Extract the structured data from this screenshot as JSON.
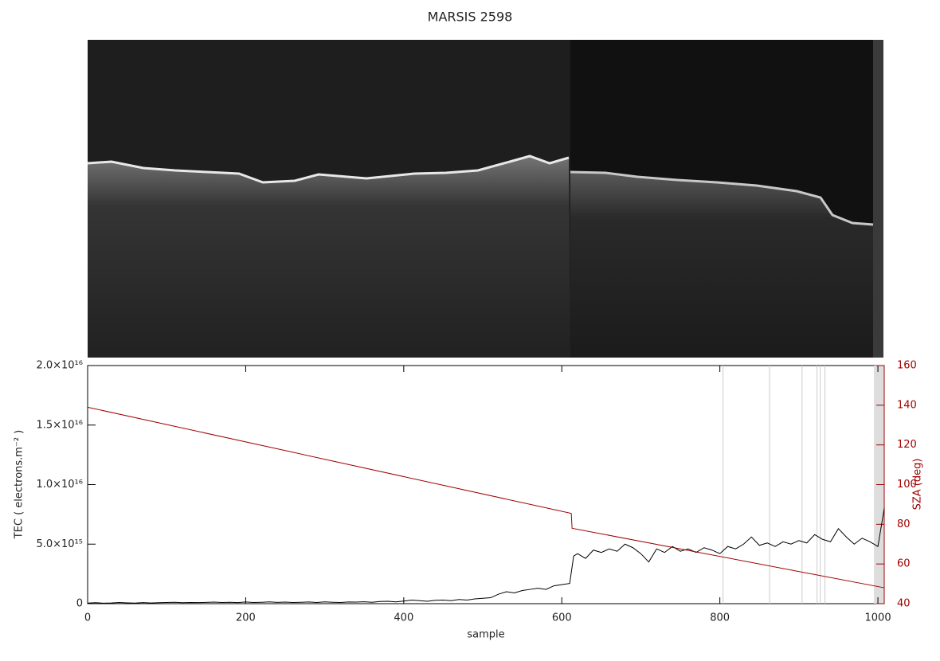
{
  "chart_data": {
    "type": "line",
    "title": "MARSIS 2598",
    "xlabel": "sample",
    "ylabel": "TEC ( electrons.m⁻² )",
    "y2label": "SZA (deg)",
    "xlim": [
      0,
      1008
    ],
    "xticks": [
      0,
      200,
      400,
      600,
      800,
      1000
    ],
    "ylim": [
      0,
      2e+16
    ],
    "yticks": [
      0,
      {
        "value": 5000000000000000.0,
        "label": "5.0×10¹⁵"
      },
      {
        "value": 1e+16,
        "label": "1.0×10¹⁶"
      },
      {
        "value": 1.5e+16,
        "label": "1.5×10¹⁶"
      },
      {
        "value": 2e+16,
        "label": "2.0×10¹⁶"
      }
    ],
    "y2lim": [
      40,
      160
    ],
    "y2ticks": [
      40,
      60,
      80,
      100,
      120,
      140,
      160
    ],
    "vlines": [
      804,
      863,
      904,
      923,
      927,
      933
    ],
    "vline_color": "#cccccc",
    "shaded": [
      995,
      1008
    ],
    "shade_color": "#dddddd",
    "series": [
      {
        "name": "TEC",
        "color": "#000000",
        "x": [
          0,
          10,
          20,
          30,
          40,
          50,
          60,
          70,
          80,
          90,
          100,
          110,
          120,
          130,
          140,
          150,
          160,
          170,
          180,
          190,
          200,
          210,
          220,
          230,
          240,
          250,
          260,
          270,
          280,
          290,
          300,
          310,
          320,
          330,
          340,
          350,
          360,
          370,
          380,
          390,
          400,
          410,
          420,
          430,
          440,
          450,
          460,
          470,
          480,
          490,
          500,
          510,
          520,
          530,
          540,
          550,
          560,
          570,
          580,
          590,
          600,
          610,
          615,
          620,
          630,
          640,
          650,
          660,
          670,
          680,
          690,
          700,
          710,
          720,
          730,
          740,
          750,
          760,
          770,
          780,
          790,
          800,
          810,
          820,
          830,
          840,
          850,
          860,
          870,
          880,
          890,
          900,
          910,
          920,
          930,
          940,
          950,
          960,
          970,
          980,
          990,
          1000,
          1008
        ],
        "values": [
          50000000000000.0,
          80000000000000.0,
          40000000000000.0,
          60000000000000.0,
          100000000000000.0,
          70000000000000.0,
          50000000000000.0,
          90000000000000.0,
          60000000000000.0,
          80000000000000.0,
          100000000000000.0,
          120000000000000.0,
          80000000000000.0,
          100000000000000.0,
          90000000000000.0,
          110000000000000.0,
          130000000000000.0,
          100000000000000.0,
          120000000000000.0,
          90000000000000.0,
          140000000000000.0,
          100000000000000.0,
          120000000000000.0,
          150000000000000.0,
          110000000000000.0,
          130000000000000.0,
          100000000000000.0,
          120000000000000.0,
          140000000000000.0,
          100000000000000.0,
          150000000000000.0,
          120000000000000.0,
          100000000000000.0,
          140000000000000.0,
          130000000000000.0,
          160000000000000.0,
          120000000000000.0,
          180000000000000.0,
          200000000000000.0,
          150000000000000.0,
          220000000000000.0,
          300000000000000.0,
          250000000000000.0,
          200000000000000.0,
          280000000000000.0,
          300000000000000.0,
          250000000000000.0,
          350000000000000.0,
          300000000000000.0,
          400000000000000.0,
          450000000000000.0,
          500000000000000.0,
          800000000000000.0,
          1000000000000000.0,
          900000000000000.0,
          1100000000000000.0,
          1200000000000000.0,
          1300000000000000.0,
          1200000000000000.0,
          1500000000000000.0,
          1600000000000000.0,
          1700000000000000.0,
          4000000000000000.0,
          4200000000000000.0,
          3800000000000000.0,
          4500000000000000.0,
          4300000000000000.0,
          4600000000000000.0,
          4400000000000000.0,
          5000000000000000.0,
          4700000000000000.0,
          4200000000000000.0,
          3500000000000000.0,
          4600000000000000.0,
          4300000000000000.0,
          4800000000000000.0,
          4400000000000000.0,
          4600000000000000.0,
          4300000000000000.0,
          4700000000000000.0,
          4500000000000000.0,
          4200000000000000.0,
          4800000000000000.0,
          4600000000000000.0,
          5000000000000000.0,
          5600000000000000.0,
          4900000000000000.0,
          5100000000000000.0,
          4800000000000000.0,
          5200000000000000.0,
          5000000000000000.0,
          5300000000000000.0,
          5100000000000000.0,
          5800000000000000.0,
          5400000000000000.0,
          5200000000000000.0,
          6300000000000000.0,
          5600000000000000.0,
          5000000000000000.0,
          5500000000000000.0,
          5200000000000000.0,
          4800000000000000.0,
          8000000000000000.0
        ]
      },
      {
        "name": "SZA",
        "color": "#a00000",
        "axis": "y2",
        "x": [
          0,
          612,
          613,
          1008
        ],
        "values": [
          139,
          85.5,
          78,
          48
        ]
      }
    ]
  }
}
